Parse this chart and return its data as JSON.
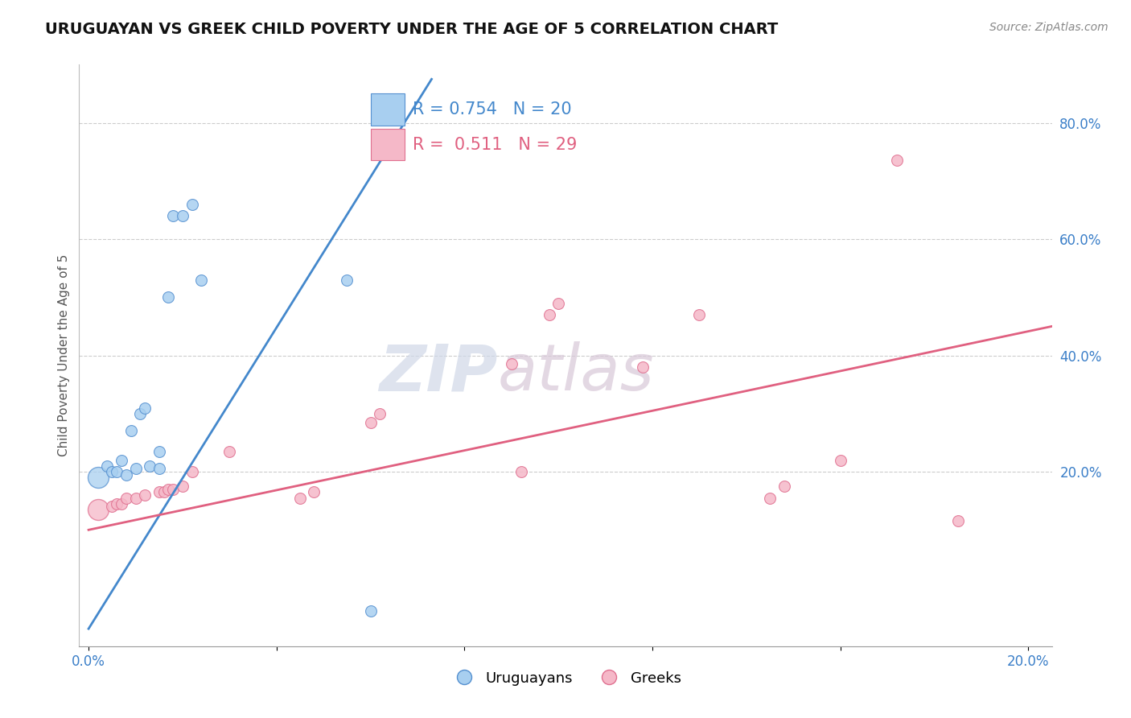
{
  "title": "URUGUAYAN VS GREEK CHILD POVERTY UNDER THE AGE OF 5 CORRELATION CHART",
  "source": "Source: ZipAtlas.com",
  "ylabel": "Child Poverty Under the Age of 5",
  "xlim": [
    -0.002,
    0.205
  ],
  "ylim": [
    -0.1,
    0.9
  ],
  "xticks": [
    0.0,
    0.04,
    0.08,
    0.12,
    0.16,
    0.2
  ],
  "xtick_labels": [
    "0.0%",
    "",
    "",
    "",
    "",
    "20.0%"
  ],
  "yticks_right": [
    0.2,
    0.4,
    0.6,
    0.8
  ],
  "ytick_labels_right": [
    "20.0%",
    "40.0%",
    "60.0%",
    "80.0%"
  ],
  "blue_label": "Uruguayans",
  "pink_label": "Greeks",
  "blue_R": "0.754",
  "blue_N": "20",
  "pink_R": "0.511",
  "pink_N": "29",
  "blue_color": "#a8cff0",
  "pink_color": "#f5b8c8",
  "blue_edge_color": "#5590d0",
  "pink_edge_color": "#e07090",
  "blue_line_color": "#4488cc",
  "pink_line_color": "#e06080",
  "watermark_zip": "ZIP",
  "watermark_atlas": "atlas",
  "uruguayan_x": [
    0.002,
    0.004,
    0.005,
    0.006,
    0.007,
    0.008,
    0.009,
    0.01,
    0.011,
    0.012,
    0.013,
    0.015,
    0.015,
    0.017,
    0.018,
    0.02,
    0.022,
    0.024,
    0.055,
    0.06
  ],
  "uruguayan_y": [
    0.19,
    0.21,
    0.2,
    0.2,
    0.22,
    0.195,
    0.27,
    0.205,
    0.3,
    0.31,
    0.21,
    0.235,
    0.205,
    0.5,
    0.64,
    0.64,
    0.66,
    0.53,
    0.53,
    -0.04
  ],
  "greek_x": [
    0.002,
    0.005,
    0.006,
    0.007,
    0.008,
    0.01,
    0.012,
    0.015,
    0.016,
    0.017,
    0.018,
    0.02,
    0.022,
    0.03,
    0.045,
    0.048,
    0.06,
    0.062,
    0.09,
    0.092,
    0.098,
    0.1,
    0.118,
    0.13,
    0.145,
    0.148,
    0.16,
    0.172,
    0.185
  ],
  "greek_y": [
    0.135,
    0.14,
    0.145,
    0.145,
    0.155,
    0.155,
    0.16,
    0.165,
    0.165,
    0.17,
    0.17,
    0.175,
    0.2,
    0.235,
    0.155,
    0.165,
    0.285,
    0.3,
    0.385,
    0.2,
    0.47,
    0.49,
    0.38,
    0.47,
    0.155,
    0.175,
    0.22,
    0.735,
    0.115
  ],
  "blue_line_x": [
    0.0,
    0.073
  ],
  "blue_line_y": [
    -0.07,
    0.875
  ],
  "pink_line_x": [
    0.0,
    0.205
  ],
  "pink_line_y": [
    0.1,
    0.45
  ],
  "marker_size": 100,
  "large_marker_size": 350,
  "title_fontsize": 14,
  "label_fontsize": 11,
  "tick_fontsize": 12,
  "legend_fontsize": 15
}
